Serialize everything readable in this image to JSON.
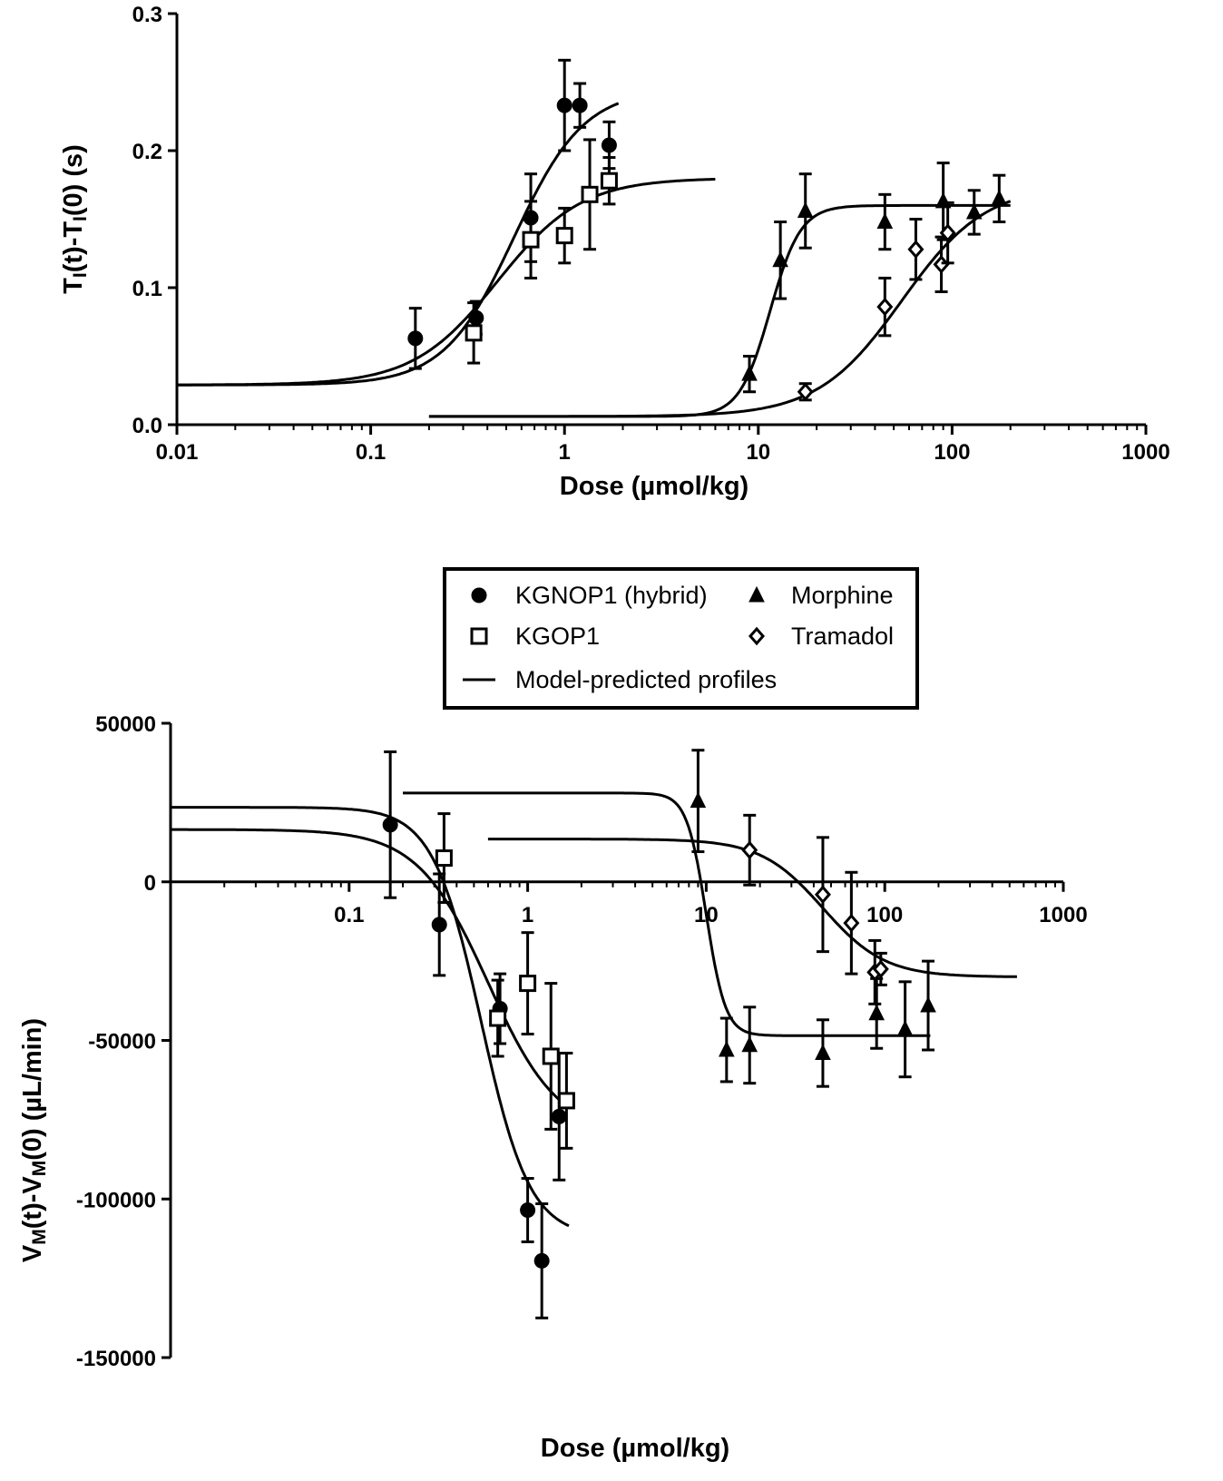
{
  "chart_data": [
    {
      "type": "scatter",
      "panel": "top",
      "xlabel": "Dose (µmol/kg)",
      "ylabel_main": "T",
      "ylabel_sub": "I",
      "ylabel_mid": "(t)-T",
      "ylabel_sub2": "I",
      "ylabel_end": "(0) (s)",
      "xscale": "log",
      "xlim": [
        0.01,
        1000
      ],
      "ylim": [
        0.0,
        0.3
      ],
      "xticks": [
        {
          "value": 0.01,
          "label": "0.01"
        },
        {
          "value": 0.1,
          "label": "0.1"
        },
        {
          "value": 1,
          "label": "1"
        },
        {
          "value": 10,
          "label": "10"
        },
        {
          "value": 100,
          "label": "100"
        },
        {
          "value": 1000,
          "label": "1000"
        }
      ],
      "yticks": [
        {
          "value": 0.0,
          "label": "0.0"
        },
        {
          "value": 0.1,
          "label": "0.1"
        },
        {
          "value": 0.2,
          "label": "0.2"
        },
        {
          "value": 0.3,
          "label": "0.3"
        }
      ],
      "series": [
        {
          "name": "KGNOP1 (hybrid)",
          "marker": "circle",
          "points": [
            {
              "x": 0.17,
              "y": 0.063,
              "err": 0.022
            },
            {
              "x": 0.35,
              "y": 0.078,
              "err": 0.012
            },
            {
              "x": 0.67,
              "y": 0.151,
              "err": 0.032
            },
            {
              "x": 1.0,
              "y": 0.233,
              "err": 0.033
            },
            {
              "x": 1.2,
              "y": 0.233,
              "err": 0.016
            },
            {
              "x": 1.7,
              "y": 0.204,
              "err": 0.017
            }
          ],
          "fit": {
            "bottom": 0.029,
            "top": 0.245,
            "ec50": 0.55,
            "hill": 2.4,
            "xmin": 0.01,
            "xmax": 1.9
          }
        },
        {
          "name": "KGOP1",
          "marker": "square",
          "points": [
            {
              "x": 0.34,
              "y": 0.067,
              "err": 0.022
            },
            {
              "x": 0.67,
              "y": 0.135,
              "err": 0.028
            },
            {
              "x": 1.0,
              "y": 0.138,
              "err": 0.02
            },
            {
              "x": 1.35,
              "y": 0.168,
              "err": 0.04
            },
            {
              "x": 1.7,
              "y": 0.178,
              "err": 0.017
            }
          ],
          "fit": {
            "bottom": 0.029,
            "top": 0.18,
            "ec50": 0.45,
            "hill": 2.0,
            "xmin": 0.01,
            "xmax": 6
          }
        },
        {
          "name": "Morphine",
          "marker": "triangle",
          "points": [
            {
              "x": 9,
              "y": 0.037,
              "err": 0.013
            },
            {
              "x": 13,
              "y": 0.12,
              "err": 0.028
            },
            {
              "x": 17.5,
              "y": 0.156,
              "err": 0.027
            },
            {
              "x": 45,
              "y": 0.148,
              "err": 0.02
            },
            {
              "x": 90,
              "y": 0.163,
              "err": 0.028
            },
            {
              "x": 130,
              "y": 0.155,
              "err": 0.016
            },
            {
              "x": 175,
              "y": 0.165,
              "err": 0.017
            }
          ],
          "fit": {
            "bottom": 0.006,
            "top": 0.16,
            "ec50": 11.5,
            "hill": 5.5,
            "xmin": 0.2,
            "xmax": 200
          }
        },
        {
          "name": "Tramadol",
          "marker": "diamond",
          "points": [
            {
              "x": 17.5,
              "y": 0.024,
              "err": 0.006
            },
            {
              "x": 45,
              "y": 0.086,
              "err": 0.021
            },
            {
              "x": 65,
              "y": 0.128,
              "err": 0.022
            },
            {
              "x": 88,
              "y": 0.117,
              "err": 0.02
            },
            {
              "x": 95,
              "y": 0.14,
              "err": 0.022
            }
          ],
          "fit": {
            "bottom": 0.006,
            "top": 0.175,
            "ec50": 55,
            "hill": 2.0,
            "xmin": 0.2,
            "xmax": 200
          }
        }
      ]
    },
    {
      "type": "scatter",
      "panel": "bottom",
      "xlabel": "Dose (µmol/kg)",
      "ylabel_main": "V",
      "ylabel_sub": "M",
      "ylabel_mid": "(t)-V",
      "ylabel_sub2": "M",
      "ylabel_end": "(0) (µL/min)",
      "xscale": "log",
      "xlim": [
        0.01,
        1000
      ],
      "ylim": [
        -150000,
        50000
      ],
      "xticks": [
        {
          "value": 0.1,
          "label": "0.1"
        },
        {
          "value": 1,
          "label": "1"
        },
        {
          "value": 10,
          "label": "10"
        },
        {
          "value": 100,
          "label": "100"
        },
        {
          "value": 1000,
          "label": "1000"
        }
      ],
      "yticks": [
        {
          "value": 50000,
          "label": "50000"
        },
        {
          "value": 0,
          "label": "0"
        },
        {
          "value": -50000,
          "label": "-50000"
        },
        {
          "value": -100000,
          "label": "-100000"
        },
        {
          "value": -150000,
          "label": "-150000"
        }
      ],
      "series": [
        {
          "name": "KGNOP1 (hybrid)",
          "marker": "circle",
          "points": [
            {
              "x": 0.17,
              "y": 18000,
              "err": 23000
            },
            {
              "x": 0.32,
              "y": -13500,
              "err": 16000
            },
            {
              "x": 0.7,
              "y": -40000,
              "err": 11000
            },
            {
              "x": 1.0,
              "y": -103500,
              "err": 10000
            },
            {
              "x": 1.2,
              "y": -119500,
              "err": 18000
            },
            {
              "x": 1.5,
              "y": -74000,
              "err": 20000
            }
          ],
          "fit": {
            "bottom": 23500,
            "top": -112000,
            "ec50": 0.55,
            "hill": 3.2,
            "xmin": 0.01,
            "xmax": 1.7
          }
        },
        {
          "name": "KGOP1",
          "marker": "square",
          "points": [
            {
              "x": 0.34,
              "y": 7500,
              "err": 14000
            },
            {
              "x": 0.68,
              "y": -43000,
              "err": 12000
            },
            {
              "x": 1.0,
              "y": -32000,
              "err": 16000
            },
            {
              "x": 1.35,
              "y": -55000,
              "err": 23000
            },
            {
              "x": 1.65,
              "y": -69000,
              "err": 15000
            }
          ],
          "fit": {
            "bottom": 16500,
            "top": -80000,
            "ec50": 0.6,
            "hill": 2.2,
            "xmin": 0.01,
            "xmax": 1.7
          }
        },
        {
          "name": "Morphine",
          "marker": "triangle",
          "points": [
            {
              "x": 9,
              "y": 25500,
              "err": 16000
            },
            {
              "x": 13,
              "y": -53000,
              "err": 10000
            },
            {
              "x": 17.5,
              "y": -51500,
              "err": 12000
            },
            {
              "x": 45,
              "y": -54000,
              "err": 10500
            },
            {
              "x": 90,
              "y": -41500,
              "err": 11000
            },
            {
              "x": 130,
              "y": -46500,
              "err": 15000
            },
            {
              "x": 175,
              "y": -39000,
              "err": 14000
            }
          ],
          "fit": {
            "bottom": 28000,
            "top": -48500,
            "ec50": 10,
            "hill": 8,
            "xmin": 0.2,
            "xmax": 180
          }
        },
        {
          "name": "Tramadol",
          "marker": "diamond",
          "points": [
            {
              "x": 17.5,
              "y": 10000,
              "err": 11000
            },
            {
              "x": 45,
              "y": -4000,
              "err": 18000
            },
            {
              "x": 65,
              "y": -13000,
              "err": 16000
            },
            {
              "x": 88,
              "y": -28500,
              "err": 10000
            },
            {
              "x": 95,
              "y": -27500,
              "err": 5000
            }
          ],
          "fit": {
            "bottom": 13500,
            "top": -30000,
            "ec50": 45,
            "hill": 2.5,
            "xmin": 0.6,
            "xmax": 550
          }
        }
      ]
    }
  ],
  "legend": {
    "placement": "between panels",
    "entries": [
      {
        "label": "KGNOP1 (hybrid)",
        "marker": "circle"
      },
      {
        "label": "Morphine",
        "marker": "triangle"
      },
      {
        "label": "KGOP1",
        "marker": "square"
      },
      {
        "label": "Tramadol",
        "marker": "diamond"
      },
      {
        "label": "Model-predicted profiles",
        "marker": "line"
      }
    ]
  }
}
